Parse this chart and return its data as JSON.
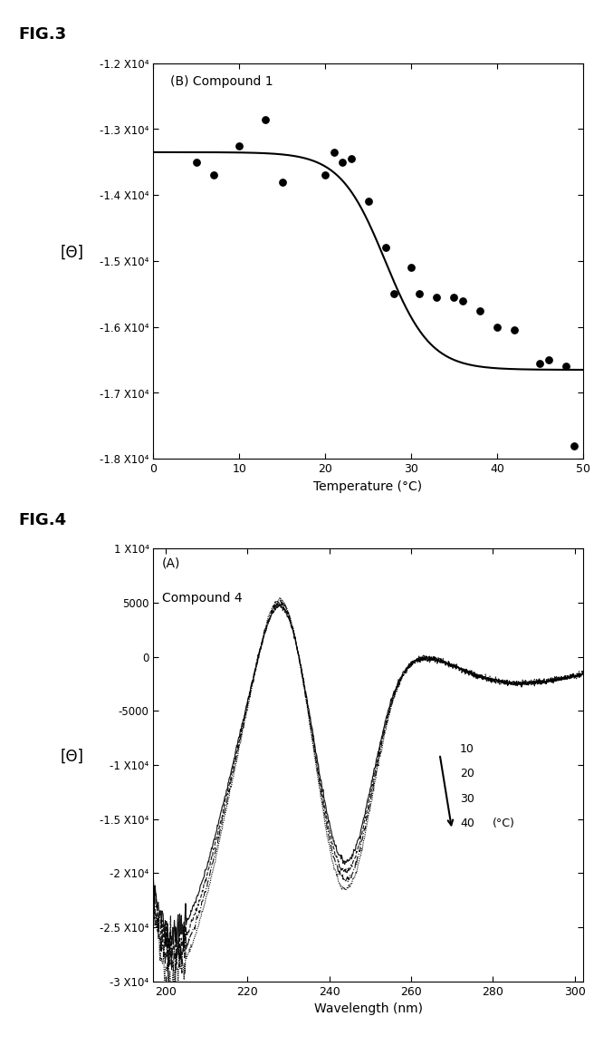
{
  "fig3": {
    "label": "FIG.3",
    "subplot_label": "(B) Compound 1",
    "xlabel": "Temperature (°C)",
    "ylabel": "[Θ]",
    "xlim": [
      0,
      50
    ],
    "ylim": [
      -18000.0,
      -12000.0
    ],
    "ytick_vals": [
      -18000.0,
      -17000.0,
      -16000.0,
      -15000.0,
      -14000.0,
      -13000.0,
      -12000.0
    ],
    "ytick_labels": [
      "-1.8 X10⁴",
      "-1.7 X10⁴",
      "-1.6 X10⁴",
      "-1.5 X10⁴",
      "-1.4 X10⁴",
      "-1.3 X10⁴",
      "-1.2 X10⁴"
    ],
    "xticks": [
      0,
      10,
      20,
      30,
      40,
      50
    ],
    "scatter_x": [
      5,
      7,
      10,
      13,
      15,
      20,
      21,
      22,
      23,
      25,
      27,
      28,
      30,
      31,
      33,
      35,
      36,
      38,
      40,
      42,
      45,
      46,
      48,
      49
    ],
    "scatter_y": [
      -13500,
      -13700,
      -13250,
      -12850,
      -13800,
      -13700,
      -13350,
      -13500,
      -13450,
      -14100,
      -14800,
      -15500,
      -15100,
      -15500,
      -15550,
      -15550,
      -15600,
      -15750,
      -16000,
      -16050,
      -16550,
      -16500,
      -16600,
      -17800
    ],
    "curve_midpoint": 27,
    "curve_k": 0.38,
    "curve_ymin": -16650,
    "curve_ymax": -13350
  },
  "fig4": {
    "label": "FIG.4",
    "subplot_label_line1": "(A)",
    "subplot_label_line2": "Compound 4",
    "xlabel": "Wavelength (nm)",
    "ylabel": "[Θ]",
    "xlim": [
      197,
      302
    ],
    "ylim": [
      -30000.0,
      10000.0
    ],
    "ytick_vals": [
      -30000.0,
      -25000.0,
      -20000.0,
      -15000.0,
      -10000.0,
      -5000,
      0,
      5000,
      10000.0
    ],
    "ytick_labels": [
      "-3 X10⁴",
      "-2.5 X10⁴",
      "-2 X10⁴",
      "-1.5 X10⁴",
      "-1 X10⁴",
      "-5000",
      "0",
      "5000",
      "1 X10⁴"
    ],
    "xticks": [
      200,
      220,
      240,
      260,
      280,
      300
    ],
    "temp_labels": [
      "10",
      "20",
      "30",
      "40"
    ],
    "temp_unit": "(°C)"
  }
}
